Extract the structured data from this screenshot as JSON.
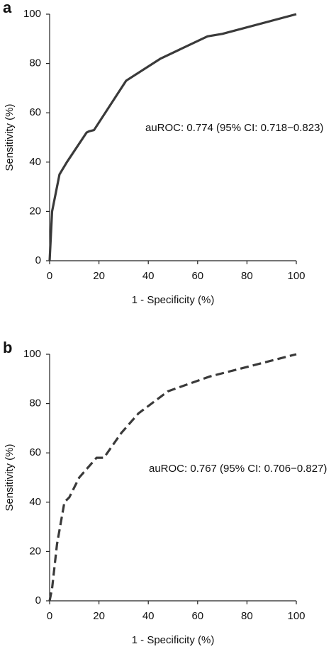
{
  "chart_data": [
    {
      "type": "line",
      "panel_label": "a",
      "x_label": "1 - Specificity (%)",
      "y_label": "Sensitivity (%)",
      "annotation": "auROC: 0.774 (95% CI: 0.718−0.823)",
      "x": [
        0,
        0.5,
        1,
        4,
        7,
        15,
        16,
        18,
        31,
        45,
        64,
        70,
        100
      ],
      "values": [
        0,
        10,
        20,
        35,
        40,
        52,
        52.5,
        53,
        73,
        82,
        91,
        92,
        100
      ],
      "color": "#3a3a3a",
      "line_style": "solid",
      "xlim": [
        0,
        100
      ],
      "xticks": [
        0,
        20,
        40,
        60,
        80,
        100
      ],
      "ylim": [
        0,
        100
      ],
      "yticks": [
        0,
        20,
        40,
        60,
        80,
        100
      ]
    },
    {
      "type": "line",
      "panel_label": "b",
      "x_label": "1 - Specificity (%)",
      "y_label": "Sensitivity (%)",
      "annotation": "auROC: 0.767 (95% CI: 0.706−0.827)",
      "x": [
        0,
        1,
        3,
        6,
        8,
        12,
        19,
        22,
        29,
        36,
        48,
        65,
        100
      ],
      "values": [
        0,
        5,
        23,
        40,
        42,
        50,
        58,
        58,
        68,
        76,
        85,
        91,
        100
      ],
      "color": "#3a3a3a",
      "line_style": "dashed",
      "xlim": [
        0,
        100
      ],
      "xticks": [
        0,
        20,
        40,
        60,
        80,
        100
      ],
      "ylim": [
        0,
        100
      ],
      "yticks": [
        0,
        20,
        40,
        60,
        80,
        100
      ]
    }
  ]
}
